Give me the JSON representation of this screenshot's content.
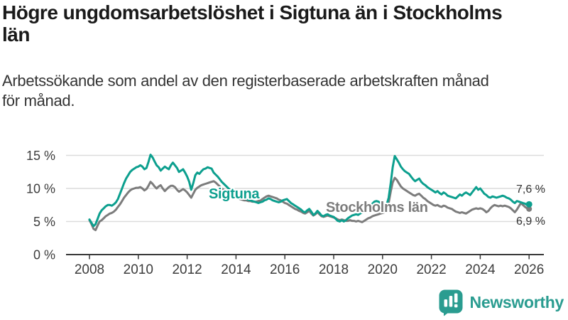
{
  "page": {
    "title_lines": [
      "Högre ungdomsarbetslöshet i Sigtuna än i Stockholms",
      "län"
    ],
    "subtitle_lines": [
      "Arbetssökande som andel av den registerbaserade arbetskraften månad",
      "för månad."
    ],
    "brand": "Newsworthy"
  },
  "chart_data": {
    "type": "line",
    "title": "Högre ungdomsarbetslöshet i Sigtuna än i Stockholms län",
    "subtitle": "Arbetssökande som andel av den registerbaserade arbetskraften månad för månad.",
    "grid": "horizontal-only",
    "legend": "inline-labels-on-chart",
    "x_axis": {
      "ticks": [
        2008,
        2010,
        2012,
        2014,
        2016,
        2018,
        2020,
        2022,
        2024,
        2026
      ]
    },
    "y_axis": {
      "ticks": [
        0,
        5,
        10,
        15
      ],
      "suffix": " %",
      "range": [
        0,
        15.8
      ]
    },
    "start_year": 2008,
    "step_months": 1,
    "end_year": 2026,
    "series": [
      {
        "name": "Sigtuna",
        "color": "#0c9f8e",
        "end_label": "7,6 %",
        "end_value": 7.6,
        "values": [
          5.3,
          4.8,
          4.3,
          4.6,
          5.4,
          6.2,
          6.7,
          7.0,
          7.3,
          7.5,
          7.5,
          7.4,
          7.6,
          7.9,
          8.4,
          9.2,
          10.0,
          10.8,
          11.5,
          12.0,
          12.5,
          12.8,
          13.0,
          13.2,
          13.3,
          13.5,
          13.3,
          12.9,
          13.1,
          14.0,
          15.1,
          14.7,
          14.1,
          13.5,
          13.2,
          12.7,
          13.0,
          13.3,
          13.1,
          12.9,
          13.5,
          13.9,
          13.5,
          13.1,
          12.5,
          12.7,
          12.9,
          12.4,
          11.8,
          11.0,
          9.8,
          10.8,
          12.0,
          12.4,
          12.2,
          12.6,
          12.9,
          13.0,
          13.2,
          13.1,
          13.0,
          12.4,
          12.1,
          11.8,
          11.4,
          11.0,
          10.7,
          10.4,
          10.1,
          9.8,
          9.5,
          9.2,
          9.0,
          8.8,
          8.7,
          8.6,
          8.5,
          8.4,
          8.3,
          8.2,
          8.1,
          8.0,
          7.9,
          7.8,
          7.9,
          8.0,
          8.2,
          8.3,
          8.5,
          8.4,
          8.2,
          8.1,
          8.0,
          7.9,
          8.0,
          8.2,
          8.3,
          8.4,
          8.1,
          7.8,
          7.6,
          7.4,
          7.2,
          7.0,
          6.8,
          6.5,
          6.4,
          6.7,
          6.9,
          6.5,
          6.0,
          6.2,
          6.6,
          6.3,
          5.9,
          5.8,
          6.0,
          6.1,
          5.9,
          5.8,
          5.7,
          5.4,
          5.1,
          5.0,
          5.2,
          5.0,
          5.2,
          5.5,
          5.7,
          5.9,
          6.0,
          6.1,
          6.0,
          6.2,
          6.4,
          6.6,
          6.9,
          7.1,
          7.4,
          7.7,
          8.0,
          8.1,
          8.0,
          7.8,
          7.6,
          7.4,
          7.5,
          8.6,
          10.8,
          13.2,
          14.9,
          14.4,
          13.9,
          13.3,
          12.9,
          12.6,
          12.4,
          12.2,
          11.8,
          11.4,
          11.1,
          11.3,
          11.5,
          11.0,
          10.7,
          10.5,
          10.2,
          10.0,
          9.8,
          9.6,
          9.4,
          9.6,
          9.3,
          9.1,
          9.4,
          9.2,
          8.9,
          8.8,
          8.7,
          8.6,
          8.5,
          8.8,
          9.1,
          8.9,
          9.2,
          9.4,
          9.2,
          9.0,
          9.4,
          9.8,
          10.2,
          9.8,
          10.0,
          9.6,
          9.2,
          9.0,
          8.7,
          8.6,
          8.8,
          8.7,
          8.6,
          8.7,
          8.8,
          8.9,
          8.8,
          8.6,
          8.5,
          8.3,
          8.0,
          7.8,
          8.1,
          8.0,
          7.9,
          7.8,
          7.7,
          7.5,
          7.6
        ]
      },
      {
        "name": "Stockholms län",
        "color": "#7c7c7c",
        "end_label": "6,9 %",
        "end_value": 6.9,
        "values": [
          5.2,
          4.6,
          3.9,
          3.7,
          4.4,
          5.0,
          5.2,
          5.5,
          5.8,
          6.0,
          6.2,
          6.3,
          6.5,
          6.8,
          7.2,
          7.6,
          8.1,
          8.6,
          9.0,
          9.4,
          9.7,
          9.9,
          10.0,
          10.1,
          10.1,
          10.2,
          10.0,
          9.7,
          9.9,
          10.4,
          11.0,
          10.7,
          10.3,
          10.0,
          10.3,
          10.5,
          10.0,
          9.6,
          9.9,
          10.2,
          10.4,
          10.4,
          10.2,
          9.8,
          9.5,
          9.7,
          9.9,
          9.7,
          9.4,
          9.0,
          8.6,
          9.2,
          9.8,
          10.1,
          10.3,
          10.5,
          10.6,
          10.7,
          10.8,
          10.9,
          11.0,
          11.1,
          10.9,
          10.6,
          10.3,
          10.0,
          9.8,
          9.6,
          9.4,
          9.2,
          9.0,
          8.8,
          8.6,
          8.5,
          8.4,
          8.3,
          8.2,
          8.2,
          8.1,
          8.1,
          8.0,
          8.0,
          8.0,
          8.1,
          8.2,
          8.4,
          8.6,
          8.8,
          8.9,
          8.8,
          8.7,
          8.6,
          8.5,
          8.3,
          8.2,
          8.0,
          7.8,
          7.7,
          7.5,
          7.3,
          7.1,
          6.9,
          6.8,
          6.6,
          6.5,
          6.3,
          6.2,
          6.4,
          6.6,
          6.2,
          5.9,
          6.1,
          6.4,
          6.1,
          5.8,
          5.7,
          5.8,
          5.9,
          5.8,
          5.7,
          5.6,
          5.5,
          5.3,
          5.2,
          5.3,
          5.2,
          5.1,
          5.1,
          5.2,
          5.1,
          5.1,
          5.0,
          5.1,
          5.0,
          4.9,
          5.1,
          5.3,
          5.5,
          5.6,
          5.8,
          5.9,
          6.0,
          6.1,
          6.2,
          6.3,
          6.4,
          6.6,
          7.8,
          9.5,
          10.9,
          11.6,
          11.3,
          10.8,
          10.3,
          10.0,
          9.8,
          9.6,
          9.4,
          9.2,
          9.0,
          8.9,
          9.1,
          9.2,
          8.9,
          8.6,
          8.4,
          8.1,
          7.9,
          7.7,
          7.5,
          7.4,
          7.5,
          7.3,
          7.2,
          7.4,
          7.3,
          7.1,
          7.0,
          6.9,
          6.7,
          6.5,
          6.4,
          6.3,
          6.4,
          6.3,
          6.2,
          6.4,
          6.6,
          6.8,
          6.9,
          7.0,
          6.9,
          7.0,
          6.9,
          6.7,
          6.4,
          6.6,
          7.0,
          7.3,
          7.5,
          7.4,
          7.3,
          7.4,
          7.3,
          7.4,
          7.3,
          7.2,
          7.0,
          6.7,
          6.4,
          6.8,
          7.3,
          7.8,
          7.5,
          7.2,
          7.0,
          6.9
        ]
      }
    ]
  }
}
